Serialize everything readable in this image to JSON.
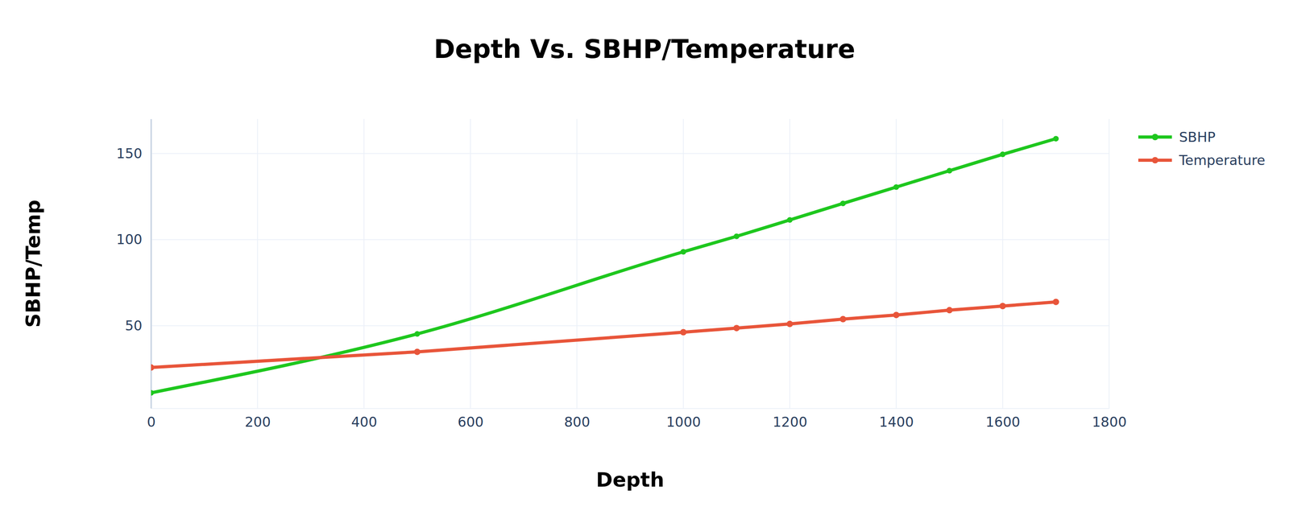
{
  "chart_data": {
    "type": "line",
    "title": "Depth Vs. SBHP/Temperature",
    "x_label": "Depth",
    "y_label": "SBHP/Temp",
    "x": [
      0,
      500,
      1000,
      1100,
      1200,
      1300,
      1400,
      1500,
      1600,
      1700
    ],
    "series": [
      {
        "name": "SBHP",
        "color": "#1ec71e",
        "marker": "circle",
        "line_style": "spline",
        "values": [
          11,
          45.2,
          92.9,
          101.9,
          111.4,
          121,
          130.5,
          140,
          149.5,
          158.6
        ]
      },
      {
        "name": "Temperature",
        "color": "#e8553a",
        "marker": "circle",
        "line_style": "spline",
        "values": [
          25.7,
          34.8,
          46.2,
          48.6,
          51,
          53.8,
          56.2,
          59,
          61.4,
          63.8
        ]
      }
    ],
    "xlim": [
      0,
      1800
    ],
    "xticks": [
      0,
      200,
      400,
      600,
      800,
      1000,
      1200,
      1400,
      1600,
      1800
    ],
    "ylim": [
      2,
      170
    ],
    "yticks": [
      50,
      100,
      150
    ],
    "grid": true,
    "legend": "upper right"
  }
}
